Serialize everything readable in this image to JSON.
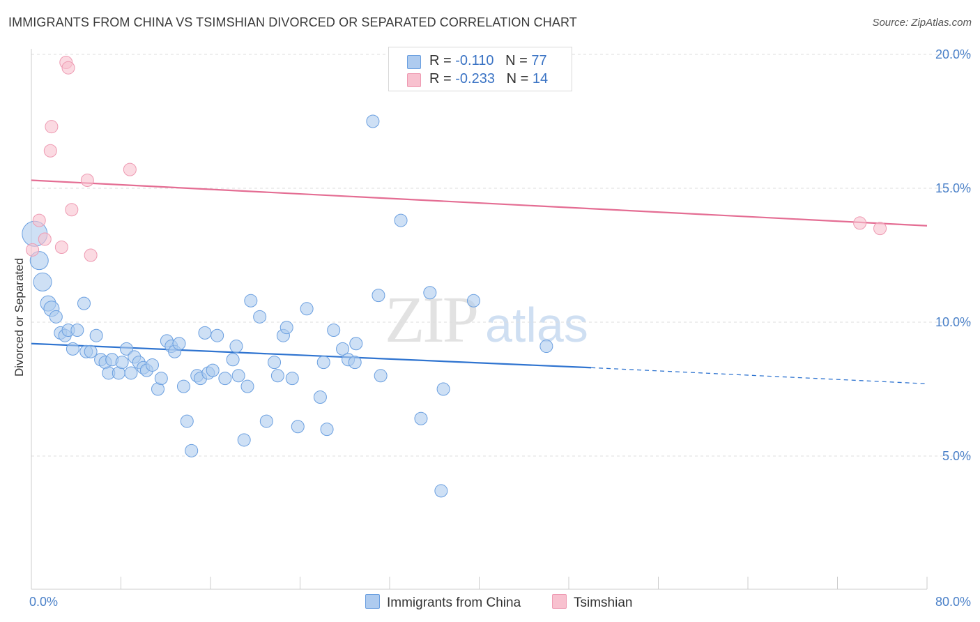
{
  "title": "IMMIGRANTS FROM CHINA VS TSIMSHIAN DIVORCED OR SEPARATED CORRELATION CHART",
  "source": "Source: ZipAtlas.com",
  "watermark": {
    "zip": "ZIP",
    "atlas": "atlas"
  },
  "legend": {
    "series1": {
      "r_label": "R = ",
      "r_value": "-0.110",
      "n_label": "N = ",
      "n_value": "77"
    },
    "series2": {
      "r_label": "R = ",
      "r_value": "-0.233",
      "n_label": "N = ",
      "n_value": "14"
    }
  },
  "bottom_legend": {
    "series1": "Immigrants from China",
    "series2": "Tsimshian"
  },
  "colors": {
    "blue_fill": "#aecbef",
    "blue_stroke": "#6a9fe0",
    "blue_line": "#2f74d0",
    "pink_fill": "#f8c1cf",
    "pink_stroke": "#ee9ab2",
    "pink_line": "#e46d93",
    "grid": "#dddddd",
    "axis": "#cccccc"
  },
  "chart_data": {
    "type": "scatter",
    "title": "IMMIGRANTS FROM CHINA VS TSIMSHIAN DIVORCED OR SEPARATED CORRELATION CHART",
    "xlabel": "",
    "ylabel": "Divorced or Separated",
    "xlim": [
      0,
      80
    ],
    "ylim": [
      0,
      20.5
    ],
    "x_tick_labels": [
      "0.0%",
      "80.0%"
    ],
    "y_ticks": [
      5,
      10,
      15,
      20
    ],
    "y_tick_labels": [
      "5.0%",
      "10.0%",
      "15.0%",
      "20.0%"
    ],
    "grid": "horizontal dashed",
    "legend_position": "top-center",
    "series": [
      {
        "name": "Immigrants from China",
        "r": -0.11,
        "n": 77,
        "trend": {
          "x0": 0,
          "y0": 9.2,
          "x1": 50,
          "y1": 8.3,
          "dashed_to_x": 80,
          "dashed_to_y": 7.7
        },
        "points": [
          [
            0.3,
            13.3
          ],
          [
            0.7,
            12.3
          ],
          [
            1.0,
            11.5
          ],
          [
            1.5,
            10.7
          ],
          [
            1.8,
            10.5
          ],
          [
            2.2,
            10.2
          ],
          [
            2.6,
            9.6
          ],
          [
            3.0,
            9.5
          ],
          [
            3.3,
            9.7
          ],
          [
            3.7,
            9.0
          ],
          [
            4.1,
            9.7
          ],
          [
            4.7,
            10.7
          ],
          [
            4.9,
            8.9
          ],
          [
            5.3,
            8.9
          ],
          [
            5.8,
            9.5
          ],
          [
            6.2,
            8.6
          ],
          [
            6.6,
            8.5
          ],
          [
            6.9,
            8.1
          ],
          [
            7.2,
            8.6
          ],
          [
            7.8,
            8.1
          ],
          [
            8.1,
            8.5
          ],
          [
            8.5,
            9.0
          ],
          [
            8.9,
            8.1
          ],
          [
            9.2,
            8.7
          ],
          [
            9.6,
            8.5
          ],
          [
            10.0,
            8.3
          ],
          [
            10.3,
            8.2
          ],
          [
            10.8,
            8.4
          ],
          [
            11.3,
            7.5
          ],
          [
            11.6,
            7.9
          ],
          [
            12.1,
            9.3
          ],
          [
            12.5,
            9.1
          ],
          [
            12.8,
            8.9
          ],
          [
            13.2,
            9.2
          ],
          [
            13.6,
            7.6
          ],
          [
            13.9,
            6.3
          ],
          [
            14.3,
            5.2
          ],
          [
            14.8,
            8.0
          ],
          [
            15.1,
            7.9
          ],
          [
            15.5,
            9.6
          ],
          [
            15.8,
            8.1
          ],
          [
            16.2,
            8.2
          ],
          [
            16.6,
            9.5
          ],
          [
            17.3,
            7.9
          ],
          [
            18.0,
            8.6
          ],
          [
            18.3,
            9.1
          ],
          [
            18.5,
            8.0
          ],
          [
            19.0,
            5.6
          ],
          [
            19.3,
            7.6
          ],
          [
            19.6,
            10.8
          ],
          [
            20.4,
            10.2
          ],
          [
            21.0,
            6.3
          ],
          [
            21.7,
            8.5
          ],
          [
            22.0,
            8.0
          ],
          [
            22.5,
            9.5
          ],
          [
            22.8,
            9.8
          ],
          [
            23.3,
            7.9
          ],
          [
            23.8,
            6.1
          ],
          [
            24.6,
            10.5
          ],
          [
            25.8,
            7.2
          ],
          [
            26.1,
            8.5
          ],
          [
            26.4,
            6.0
          ],
          [
            27.0,
            9.7
          ],
          [
            27.8,
            9.0
          ],
          [
            28.3,
            8.6
          ],
          [
            28.9,
            8.5
          ],
          [
            29.0,
            9.2
          ],
          [
            30.5,
            17.5
          ],
          [
            31.0,
            11.0
          ],
          [
            31.2,
            8.0
          ],
          [
            33.0,
            13.8
          ],
          [
            34.8,
            6.4
          ],
          [
            35.6,
            11.1
          ],
          [
            36.6,
            3.7
          ],
          [
            36.8,
            7.5
          ],
          [
            39.5,
            10.8
          ],
          [
            46.0,
            9.1
          ]
        ]
      },
      {
        "name": "Tsimshian",
        "r": -0.233,
        "n": 14,
        "trend": {
          "x0": 0,
          "y0": 15.3,
          "x1": 80,
          "y1": 13.6
        },
        "points": [
          [
            0.1,
            12.7
          ],
          [
            0.7,
            13.8
          ],
          [
            1.2,
            13.1
          ],
          [
            1.7,
            16.4
          ],
          [
            1.8,
            17.3
          ],
          [
            2.7,
            12.8
          ],
          [
            3.1,
            19.7
          ],
          [
            3.3,
            19.5
          ],
          [
            3.6,
            14.2
          ],
          [
            5.0,
            15.3
          ],
          [
            5.3,
            12.5
          ],
          [
            8.8,
            15.7
          ],
          [
            74.0,
            13.7
          ],
          [
            75.8,
            13.5
          ]
        ]
      }
    ]
  }
}
